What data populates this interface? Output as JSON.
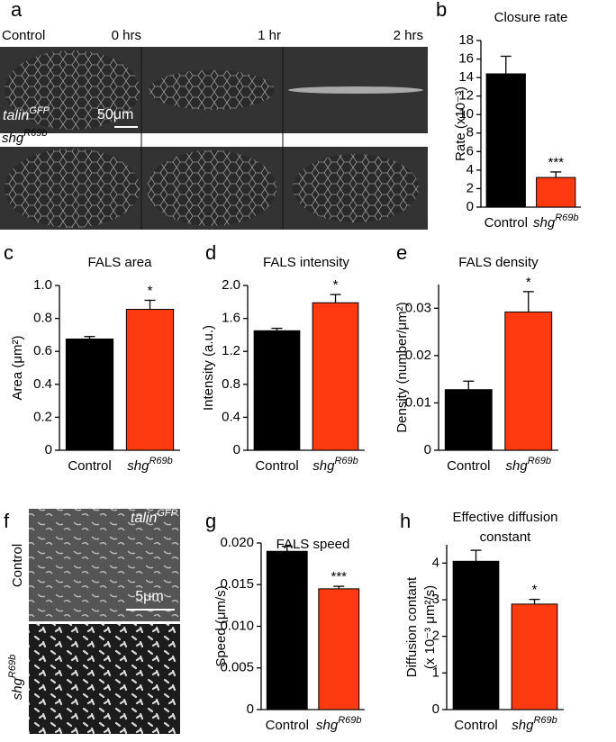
{
  "panel_letters": [
    "a",
    "b",
    "c",
    "d",
    "e",
    "f",
    "g",
    "h"
  ],
  "image_a": {
    "row1_label": "Control",
    "times": [
      "0 hrs",
      "1 hr",
      "2 hrs"
    ],
    "marker": "talinGFP",
    "scale": "50μm",
    "row2_label": "shgR69b"
  },
  "image_f": {
    "marker": "talinGFP",
    "top_label": "Control",
    "scale": "5μm",
    "bottom_label": "shgR69b"
  },
  "chart_data": [
    {
      "type": "bar",
      "title": "Closure rate",
      "ylabel": "Rate (x10⁻³)",
      "categories": [
        "Control",
        "shgR69b"
      ],
      "values": [
        14.4,
        3.2
      ],
      "errors": [
        1.9,
        0.6
      ],
      "significance": [
        null,
        "***"
      ],
      "colors": [
        "#000000",
        "#ff3a10"
      ],
      "ylim": [
        0,
        18
      ],
      "yticks": [
        0,
        2,
        4,
        6,
        8,
        10,
        12,
        14,
        16,
        18
      ]
    },
    {
      "type": "bar",
      "title": "FALS area",
      "ylabel": "Area (μm²)",
      "categories": [
        "Control",
        "shgR69b"
      ],
      "values": [
        0.675,
        0.855
      ],
      "errors": [
        0.015,
        0.055
      ],
      "significance": [
        null,
        "*"
      ],
      "colors": [
        "#000000",
        "#ff3a10"
      ],
      "ylim": [
        0,
        1
      ],
      "yticks": [
        0,
        0.2,
        0.4,
        0.6,
        0.8,
        {
          "value": 1,
          "label": "1.0"
        }
      ]
    },
    {
      "type": "bar",
      "title": "FALS intensity",
      "ylabel": "Intensity (a.u.)",
      "categories": [
        "Control",
        "shgR69b"
      ],
      "values": [
        1.45,
        1.79
      ],
      "errors": [
        0.03,
        0.1
      ],
      "significance": [
        null,
        "*"
      ],
      "colors": [
        "#000000",
        "#ff3a10"
      ],
      "ylim": [
        0,
        2
      ],
      "yticks": [
        0,
        0.4,
        0.8,
        1.2,
        1.6,
        {
          "value": 2,
          "label": "2.0"
        }
      ]
    },
    {
      "type": "bar",
      "title": "FALS density",
      "ylabel": "Density (number/μm²)",
      "categories": [
        "Control",
        "shgR69b"
      ],
      "values": [
        0.0128,
        0.0292
      ],
      "errors": [
        0.0018,
        0.0043
      ],
      "significance": [
        null,
        "*"
      ],
      "colors": [
        "#000000",
        "#ff3a10"
      ],
      "ylim": [
        0,
        0.035
      ],
      "yticks": [
        0,
        0.01,
        0.02,
        0.03
      ]
    },
    {
      "type": "bar",
      "title": "FALS speed",
      "ylabel": "Speed (μm/s)",
      "categories": [
        "Control",
        "shgR69b"
      ],
      "values": [
        0.019,
        0.0145
      ],
      "errors": [
        0.0006,
        0.0003
      ],
      "significance": [
        null,
        "***"
      ],
      "colors": [
        "#000000",
        "#ff3a10"
      ],
      "ylim": [
        0,
        0.02
      ],
      "yticks": [
        0,
        0.005,
        {
          "value": 0.01,
          "label": "0.010"
        },
        0.015,
        {
          "value": 0.02,
          "label": "0.020"
        }
      ]
    },
    {
      "type": "bar",
      "title": [
        "Effective diffusion",
        "constant"
      ],
      "ylabel": [
        "Diffusion contant",
        "(x 10⁻³ μm²/s)"
      ],
      "categories": [
        "Control",
        "shgR69b"
      ],
      "values": [
        4.05,
        2.88
      ],
      "errors": [
        0.3,
        0.13
      ],
      "significance": [
        null,
        "*"
      ],
      "colors": [
        "#000000",
        "#ff3a10"
      ],
      "ylim": [
        0,
        4.5
      ],
      "yticks": [
        0,
        1,
        2,
        3,
        4
      ]
    }
  ]
}
